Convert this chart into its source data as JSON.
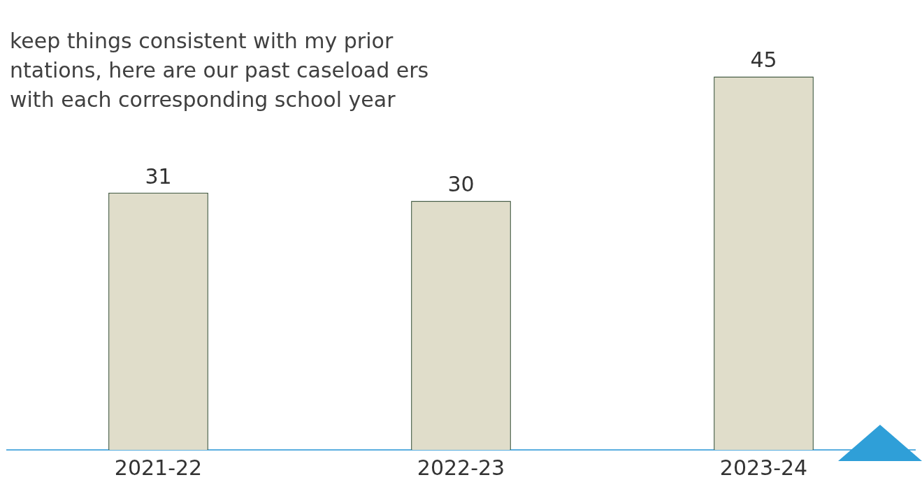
{
  "chart_data": {
    "type": "bar",
    "categories": [
      "2021-22",
      "2022-23",
      "2023-24"
    ],
    "values": [
      31,
      30,
      45
    ],
    "color": "#e0ddca",
    "data_labels": true,
    "tick_labels": "x",
    "grid": false,
    "legend": false,
    "annotations": [
      "keep things consistent with my prior ntations, here are our past caseload ers with each corresponding school year"
    ]
  }
}
